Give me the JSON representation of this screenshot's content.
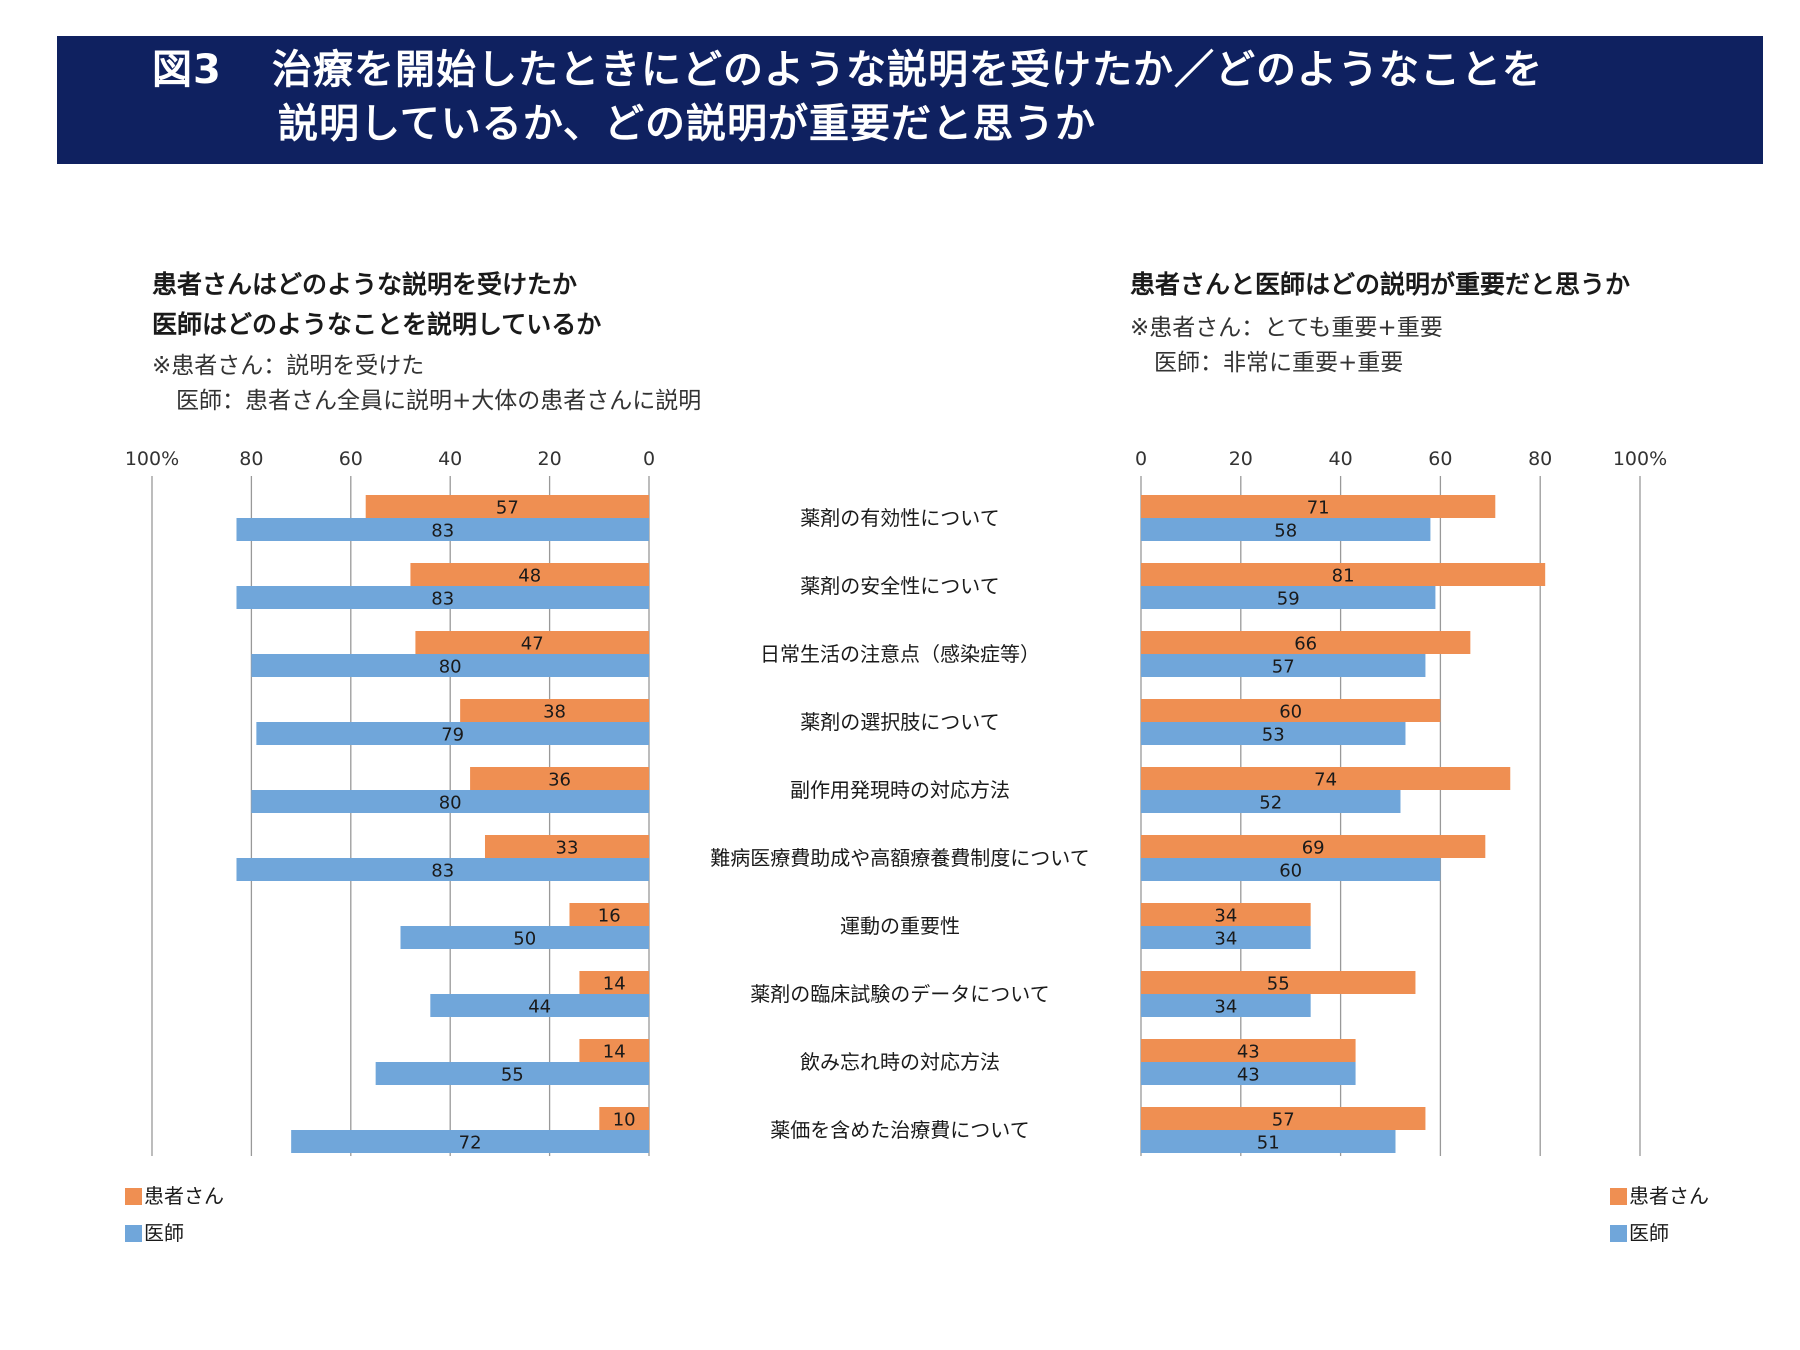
{
  "header": {
    "figure_number": "図3",
    "title_line1": "治療を開始したときにどのような説明を受けたか／どのようなことを",
    "title_line2": "説明しているか、どの説明が重要だと思うか"
  },
  "left_panel": {
    "title_line1": "患者さんはどのような説明を受けたか",
    "title_line2": "医師はどのようなことを説明しているか",
    "note_line1": "※患者さん：説明を受けた",
    "note_line2": "医師：患者さん全員に説明+大体の患者さんに説明"
  },
  "right_panel": {
    "title": "患者さんと医師はどの説明が重要だと思うか",
    "note_line1": "※患者さん：とても重要+重要",
    "note_line2": "医師：非常に重要+重要"
  },
  "legend": {
    "patient": "患者さん",
    "doctor": "医師"
  },
  "colors": {
    "banner": "#0f2160",
    "patient": "#ef8f52",
    "doctor": "#70a6da",
    "grid": "#999999"
  },
  "chart_data": [
    {
      "type": "bar",
      "orientation": "horizontal-reversed",
      "title": "患者さんはどのような説明を受けたか／医師はどのようなことを説明しているか",
      "xlabel": "",
      "ylabel": "",
      "xlim": [
        0,
        100
      ],
      "tick_labels": [
        "0",
        "20",
        "40",
        "60",
        "80",
        "100%"
      ],
      "ticks": [
        0,
        20,
        40,
        60,
        80,
        100
      ],
      "grid": true,
      "legend_position": "bottom-left",
      "categories": [
        "薬剤の有効性について",
        "薬剤の安全性について",
        "日常生活の注意点（感染症等）",
        "薬剤の選択肢について",
        "副作用発現時の対応方法",
        "難病医療費助成や高額療養費制度について",
        "運動の重要性",
        "薬剤の臨床試験のデータについて",
        "飲み忘れ時の対応方法",
        "薬価を含めた治療費について"
      ],
      "series": [
        {
          "name": "患者さん",
          "values": [
            57,
            48,
            47,
            38,
            36,
            33,
            16,
            14,
            14,
            10
          ]
        },
        {
          "name": "医師",
          "values": [
            83,
            83,
            80,
            79,
            80,
            83,
            50,
            44,
            55,
            72
          ]
        }
      ]
    },
    {
      "type": "bar",
      "orientation": "horizontal",
      "title": "患者さんと医師はどの説明が重要だと思うか",
      "xlabel": "",
      "ylabel": "",
      "xlim": [
        0,
        100
      ],
      "tick_labels": [
        "0",
        "20",
        "40",
        "60",
        "80",
        "100%"
      ],
      "ticks": [
        0,
        20,
        40,
        60,
        80,
        100
      ],
      "grid": true,
      "legend_position": "bottom-right",
      "categories": [
        "薬剤の有効性について",
        "薬剤の安全性について",
        "日常生活の注意点（感染症等）",
        "薬剤の選択肢について",
        "副作用発現時の対応方法",
        "難病医療費助成や高額療養費制度について",
        "運動の重要性",
        "薬剤の臨床試験のデータについて",
        "飲み忘れ時の対応方法",
        "薬価を含めた治療費について"
      ],
      "series": [
        {
          "name": "患者さん",
          "values": [
            71,
            81,
            66,
            60,
            74,
            69,
            34,
            55,
            43,
            57
          ]
        },
        {
          "name": "医師",
          "values": [
            58,
            59,
            57,
            53,
            52,
            60,
            34,
            34,
            43,
            51
          ]
        }
      ]
    }
  ]
}
